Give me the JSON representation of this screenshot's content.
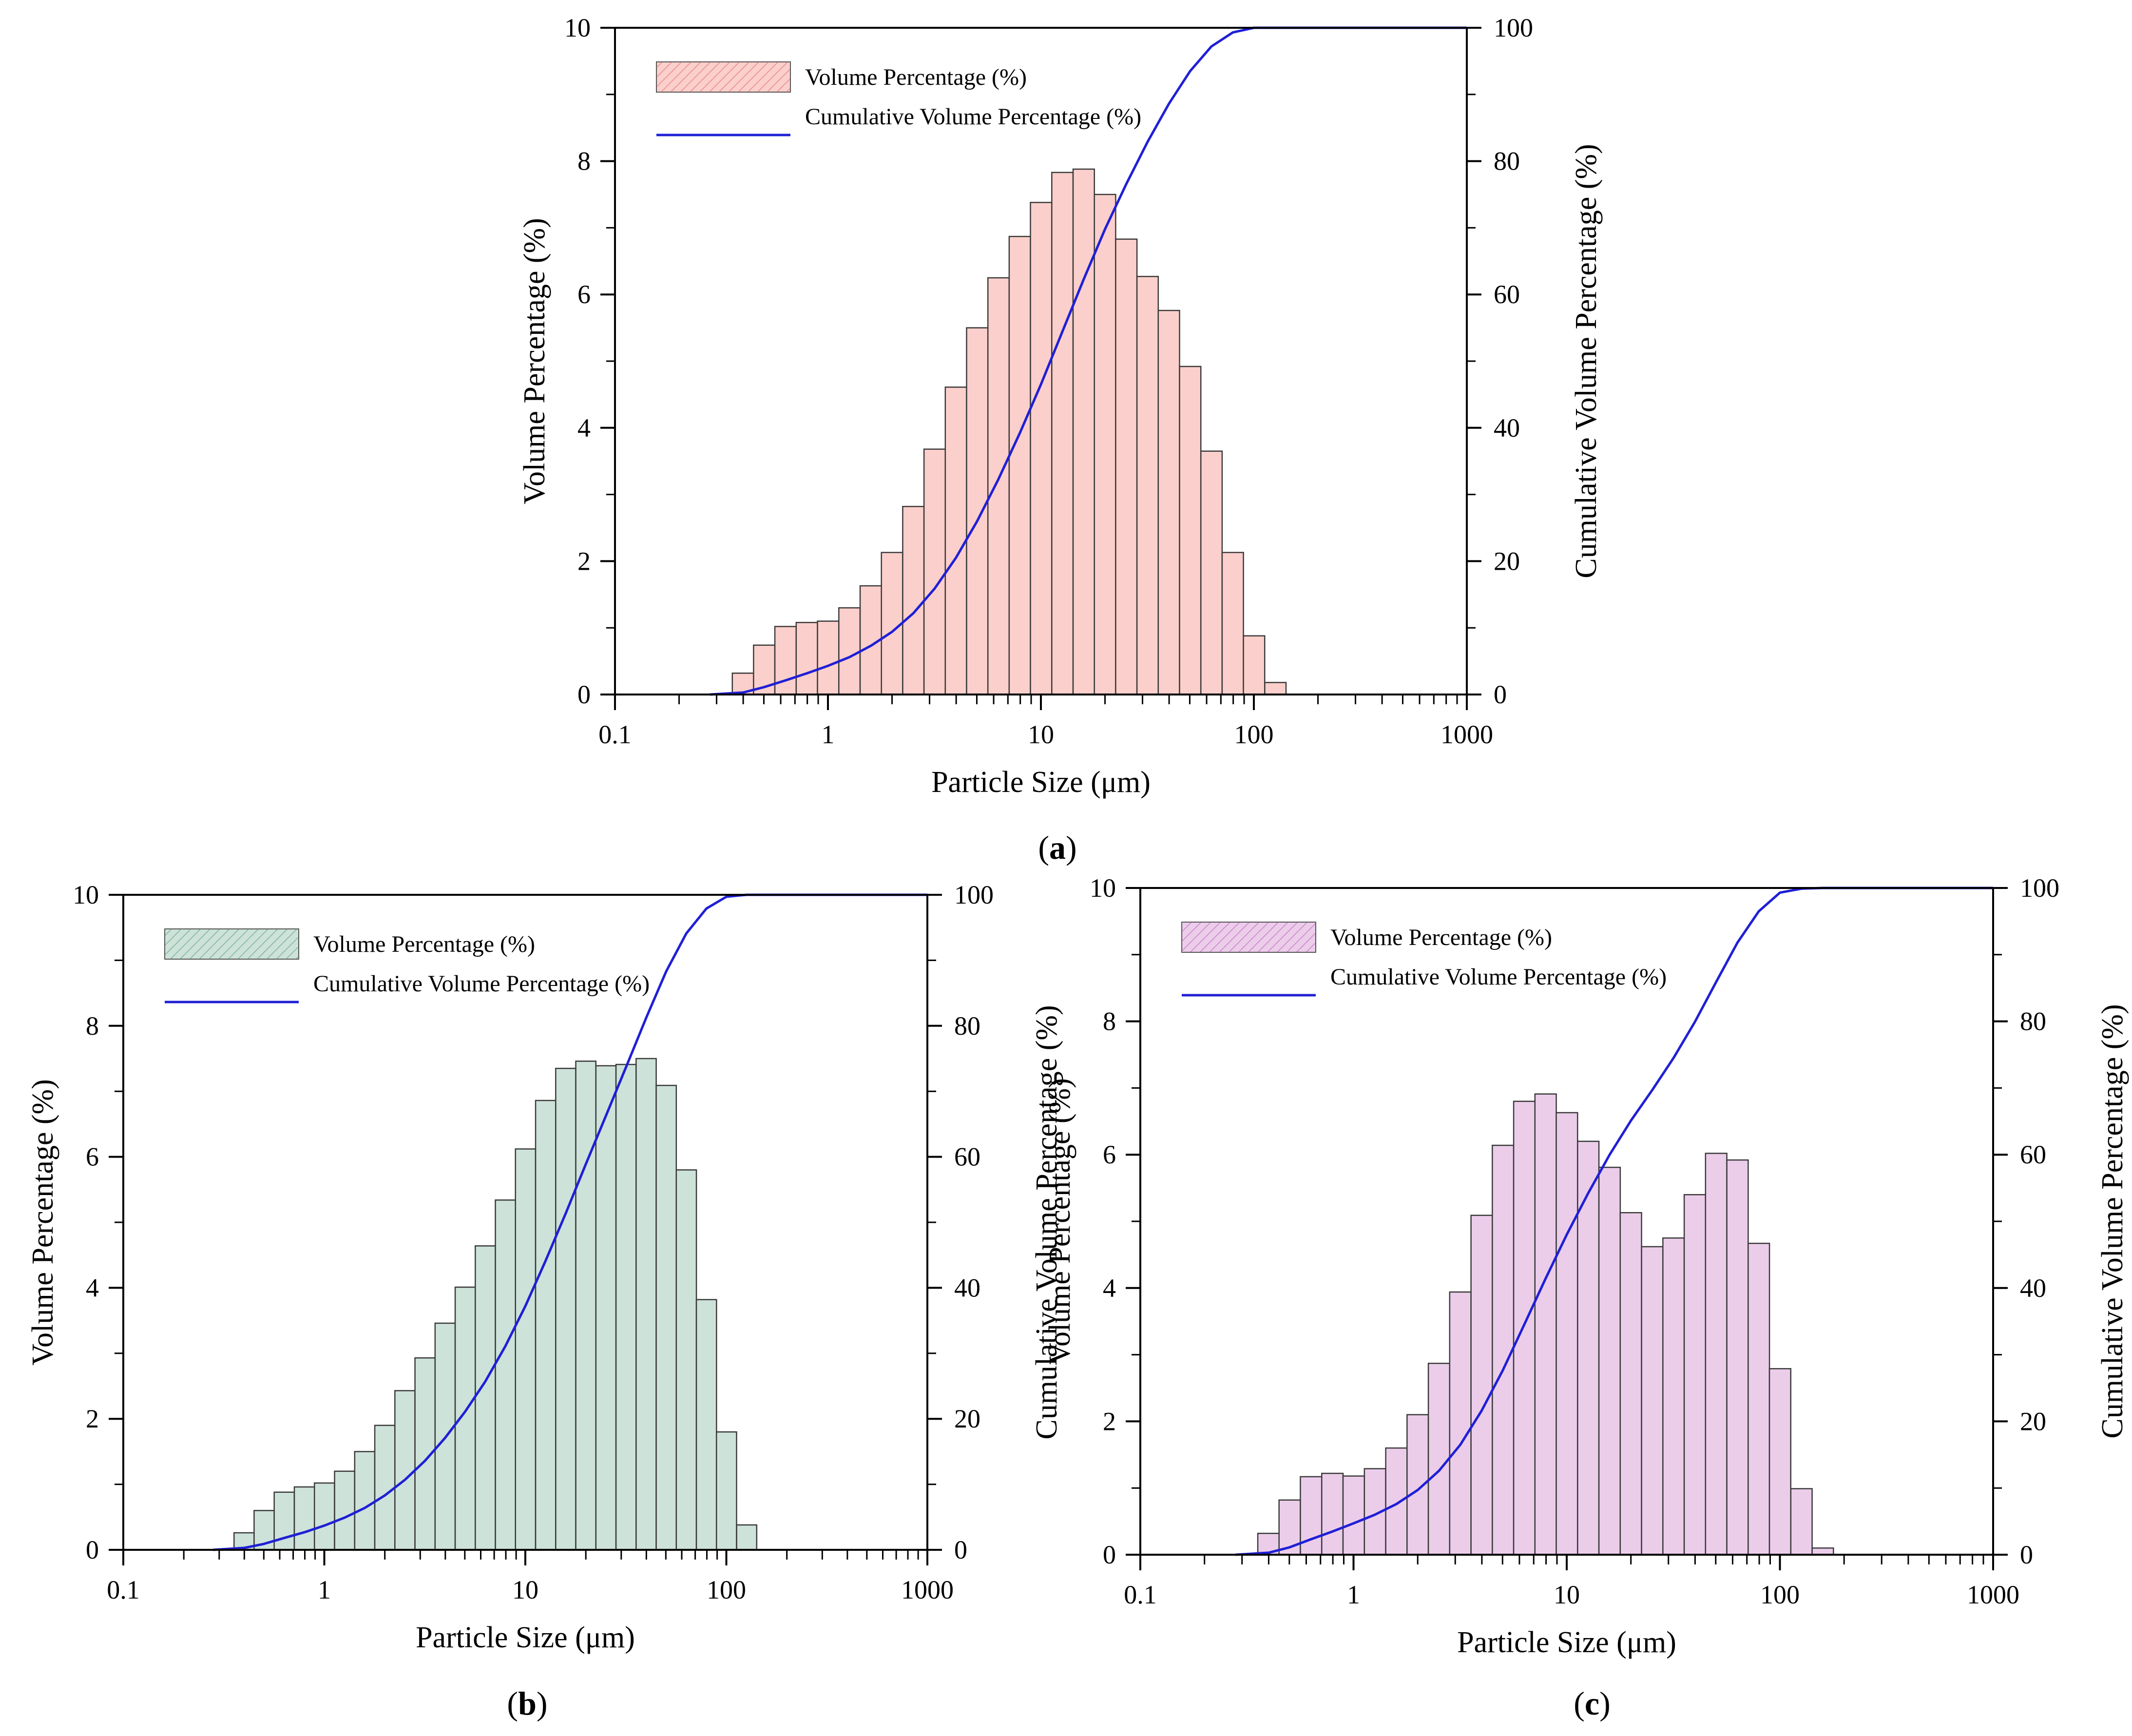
{
  "chart_data": [
    {
      "panel_label": "a",
      "type": "bar",
      "xlabel": "Particle Size (μm)",
      "ylabel_left": "Volume Percentage (%)",
      "ylabel_right": "Cumulative Volume Percentage (%)",
      "x_scale": "log",
      "xlim": [
        0.1,
        1000
      ],
      "x_tick_labels": [
        "0.1",
        "1",
        "10",
        "100",
        "1000"
      ],
      "ylim_left": [
        0,
        10
      ],
      "y_tick_labels_left": [
        "0",
        "2",
        "4",
        "6",
        "8",
        "10"
      ],
      "ylim_right": [
        0,
        100
      ],
      "y_tick_labels_right": [
        "0",
        "20",
        "40",
        "60",
        "80",
        "100"
      ],
      "legend": {
        "position": "top-left",
        "bar_label": "Volume Percentage (%)",
        "line_label": "Cumulative Volume Percentage (%)"
      },
      "bar_color": "#fbcfcb",
      "line_color": "#1f1fd6",
      "series": [
        {
          "name": "Volume Percentage (%)",
          "kind": "bar",
          "x": [
            0.399,
            0.502,
            0.632,
            0.796,
            1.002,
            1.262,
            1.589,
            2.0,
            2.518,
            3.17,
            3.991,
            5.024,
            6.325,
            7.962,
            10.02,
            12.62,
            15.89,
            20.0,
            25.18,
            31.7,
            39.91,
            50.24,
            63.25,
            79.62,
            100.2,
            126.2,
            158.9
          ],
          "values": [
            0.32,
            0.74,
            1.02,
            1.08,
            1.1,
            1.3,
            1.63,
            2.13,
            2.82,
            3.68,
            4.61,
            5.5,
            6.25,
            6.87,
            7.38,
            7.83,
            7.88,
            7.5,
            6.83,
            6.27,
            5.76,
            4.92,
            3.65,
            2.13,
            0.88,
            0.18,
            0.0
          ]
        },
        {
          "name": "Cumulative Volume Percentage (%)",
          "kind": "line",
          "x": [
            0.28,
            0.4,
            0.5,
            0.63,
            0.8,
            1.0,
            1.26,
            1.59,
            2.0,
            2.52,
            3.17,
            3.99,
            5.02,
            6.32,
            7.96,
            10.0,
            12.6,
            15.9,
            20.0,
            25.2,
            31.7,
            39.9,
            50.2,
            63.2,
            79.6,
            100,
            126,
            159,
            200,
            1000
          ],
          "values": [
            0,
            0.3,
            1.1,
            2.1,
            3.2,
            4.3,
            5.6,
            7.3,
            9.4,
            12.2,
            15.9,
            20.5,
            26.0,
            32.3,
            39.2,
            46.5,
            54.4,
            62.3,
            69.8,
            76.6,
            82.9,
            88.6,
            93.5,
            97.2,
            99.3,
            100,
            100,
            100,
            100,
            100
          ]
        }
      ]
    },
    {
      "panel_label": "b",
      "type": "bar",
      "xlabel": "Particle Size (μm)",
      "ylabel_left": "Volume Percentage (%)",
      "ylabel_right": "Cumulative Volume Percentage (%)",
      "x_scale": "log",
      "xlim": [
        0.1,
        1000
      ],
      "x_tick_labels": [
        "0.1",
        "1",
        "10",
        "100",
        "1000"
      ],
      "ylim_left": [
        0,
        10
      ],
      "y_tick_labels_left": [
        "0",
        "2",
        "4",
        "6",
        "8",
        "10"
      ],
      "ylim_right": [
        0,
        100
      ],
      "y_tick_labels_right": [
        "0",
        "20",
        "40",
        "60",
        "80",
        "100"
      ],
      "legend": {
        "position": "top-left",
        "bar_label": "Volume Percentage (%)",
        "line_label": "Cumulative Volume Percentage (%)"
      },
      "bar_color": "#cde2d9",
      "line_color": "#1f1fd6",
      "series": [
        {
          "name": "Volume Percentage (%)",
          "kind": "bar",
          "x": [
            0.399,
            0.502,
            0.632,
            0.796,
            1.002,
            1.262,
            1.589,
            2.0,
            2.518,
            3.17,
            3.991,
            5.024,
            6.325,
            7.962,
            10.02,
            12.62,
            15.89,
            20.0,
            25.18,
            31.7,
            39.91,
            50.24,
            63.25,
            79.62,
            100.2,
            126.2,
            158.9
          ],
          "values": [
            0.26,
            0.6,
            0.88,
            0.96,
            1.02,
            1.2,
            1.5,
            1.9,
            2.43,
            2.93,
            3.46,
            4.01,
            4.64,
            5.34,
            6.12,
            6.86,
            7.35,
            7.46,
            7.39,
            7.41,
            7.5,
            7.09,
            5.8,
            3.82,
            1.8,
            0.38,
            0.0
          ]
        },
        {
          "name": "Cumulative Volume Percentage (%)",
          "kind": "line",
          "x": [
            0.28,
            0.4,
            0.5,
            0.63,
            0.8,
            1.0,
            1.26,
            1.59,
            2.0,
            2.52,
            3.17,
            3.99,
            5.02,
            6.32,
            7.96,
            10.0,
            12.6,
            15.9,
            20.0,
            25.2,
            31.7,
            39.9,
            50.2,
            63.2,
            79.6,
            100,
            126,
            159,
            200,
            1000
          ],
          "values": [
            0,
            0.3,
            0.9,
            1.8,
            2.7,
            3.7,
            4.9,
            6.4,
            8.3,
            10.7,
            13.6,
            17.1,
            21.1,
            25.7,
            31.1,
            37.2,
            44.1,
            51.4,
            58.9,
            66.3,
            73.7,
            81.2,
            88.3,
            94.1,
            97.9,
            99.7,
            100,
            100,
            100,
            100
          ]
        }
      ]
    },
    {
      "panel_label": "c",
      "type": "bar",
      "xlabel": "Particle Size (μm)",
      "ylabel_left": "Volume Percentage (%)",
      "ylabel_right": "Cumulative Volume Percentage (%)",
      "x_scale": "log",
      "xlim": [
        0.1,
        1000
      ],
      "x_tick_labels": [
        "0.1",
        "1",
        "10",
        "100",
        "1000"
      ],
      "ylim_left": [
        0,
        10
      ],
      "y_tick_labels_left": [
        "0",
        "2",
        "4",
        "6",
        "8",
        "10"
      ],
      "ylim_right": [
        0,
        100
      ],
      "y_tick_labels_right": [
        "0",
        "20",
        "40",
        "60",
        "80",
        "100"
      ],
      "legend": {
        "position": "top-left",
        "bar_label": "Volume Percentage (%)",
        "line_label": "Cumulative Volume Percentage (%)"
      },
      "bar_color": "#ebcdea",
      "line_color": "#1f1fd6",
      "series": [
        {
          "name": "Volume Percentage (%)",
          "kind": "bar",
          "x": [
            0.399,
            0.502,
            0.632,
            0.796,
            1.002,
            1.262,
            1.589,
            2.0,
            2.518,
            3.17,
            3.991,
            5.024,
            6.325,
            7.962,
            10.02,
            12.62,
            15.89,
            20.0,
            25.18,
            31.7,
            39.91,
            50.24,
            63.25,
            79.62,
            100.2,
            126.2,
            158.9,
            200
          ],
          "values": [
            0.32,
            0.82,
            1.17,
            1.22,
            1.18,
            1.29,
            1.6,
            2.1,
            2.87,
            3.94,
            5.09,
            6.14,
            6.8,
            6.91,
            6.63,
            6.2,
            5.81,
            5.13,
            4.62,
            4.75,
            5.4,
            6.02,
            5.92,
            4.67,
            2.79,
            0.99,
            0.1,
            0.0
          ]
        },
        {
          "name": "Cumulative Volume Percentage (%)",
          "kind": "line",
          "x": [
            0.28,
            0.4,
            0.5,
            0.63,
            0.8,
            1.0,
            1.26,
            1.59,
            2.0,
            2.52,
            3.17,
            3.99,
            5.02,
            6.32,
            7.96,
            10.0,
            12.6,
            15.9,
            20.0,
            25.2,
            31.7,
            39.9,
            50.2,
            63.2,
            79.6,
            100,
            126,
            159,
            200,
            1000
          ],
          "values": [
            0,
            0.3,
            1.1,
            2.3,
            3.5,
            4.7,
            6.0,
            7.6,
            9.7,
            12.6,
            16.5,
            21.6,
            27.7,
            34.5,
            41.4,
            48.0,
            54.2,
            60.0,
            65.1,
            69.7,
            74.5,
            79.9,
            85.9,
            91.8,
            96.5,
            99.3,
            99.9,
            100,
            100,
            100
          ]
        }
      ]
    }
  ]
}
